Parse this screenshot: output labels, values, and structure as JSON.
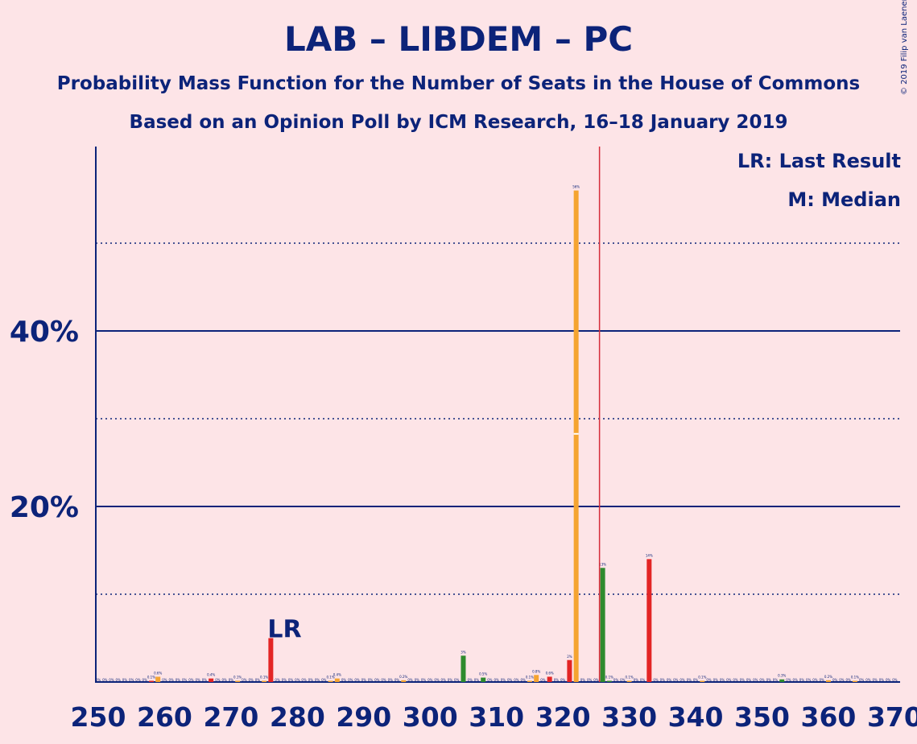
{
  "title": "LAB – LIBDEM – PC",
  "subtitle1": "Probability Mass Function for the Number of Seats in the House of Commons",
  "subtitle2": "Based on an Opinion Poll by ICM Research, 16–18 January 2019",
  "copyright": "© 2019 Filip van Laenen",
  "legend": {
    "lr": "LR: Last Result",
    "median": "M: Median"
  },
  "colors": {
    "background": "#fde4e7",
    "text": "#0c2379",
    "red": "#e32525",
    "orange": "#f5a430",
    "green": "#2e8b2e",
    "median_line": "#d62d3a"
  },
  "chart_data": {
    "type": "bar",
    "xlim": [
      250,
      370
    ],
    "ylim": [
      0,
      60
    ],
    "y_ticks": [
      20,
      40
    ],
    "y_tick_labels": [
      "20%",
      "40%"
    ],
    "y_minor_grid": [
      10,
      30,
      50
    ],
    "x_ticks": [
      250,
      260,
      270,
      280,
      290,
      300,
      310,
      320,
      330,
      340,
      350,
      360,
      370
    ],
    "x_tick_labels": [
      "250",
      "260",
      "270",
      "280",
      "290",
      "300",
      "310",
      "320",
      "330",
      "340",
      "350",
      "360",
      "370"
    ],
    "last_result": {
      "seat": 276,
      "label": "LR"
    },
    "median": {
      "seat": 322,
      "marker": "M"
    },
    "majority_line": 326,
    "bars": [
      {
        "seat": 258,
        "value": 0.1,
        "color": "red",
        "label": "0.1%"
      },
      {
        "seat": 259,
        "value": 0.6,
        "color": "orange",
        "label": "0.6%"
      },
      {
        "seat": 267,
        "value": 0.4,
        "color": "red",
        "label": "0.4%"
      },
      {
        "seat": 271,
        "value": 0.1,
        "color": "orange",
        "label": "0.1%"
      },
      {
        "seat": 275,
        "value": 0.1,
        "color": "orange",
        "label": "0.1%"
      },
      {
        "seat": 276,
        "value": 5,
        "color": "red",
        "label": ""
      },
      {
        "seat": 285,
        "value": 0.1,
        "color": "orange",
        "label": "0.1%"
      },
      {
        "seat": 286,
        "value": 0.4,
        "color": "orange",
        "label": "0.4%"
      },
      {
        "seat": 296,
        "value": 0.2,
        "color": "orange",
        "label": "0.2%"
      },
      {
        "seat": 305,
        "value": 3,
        "color": "green",
        "label": "3%"
      },
      {
        "seat": 308,
        "value": 0.5,
        "color": "green",
        "label": "0.5%"
      },
      {
        "seat": 315,
        "value": 0.1,
        "color": "orange",
        "label": "0.1%"
      },
      {
        "seat": 316,
        "value": 0.8,
        "color": "orange",
        "label": "0.8%"
      },
      {
        "seat": 318,
        "value": 0.6,
        "color": "red",
        "label": "0.6%"
      },
      {
        "seat": 321,
        "value": 2.5,
        "color": "red",
        "label": "2%"
      },
      {
        "seat": 322,
        "value": 56,
        "color": "orange",
        "label": "56%"
      },
      {
        "seat": 326,
        "value": 13,
        "color": "green",
        "label": "13%"
      },
      {
        "seat": 327,
        "value": 0.1,
        "color": "green",
        "label": "0.1%"
      },
      {
        "seat": 330,
        "value": 0.1,
        "color": "orange",
        "label": "0.1%"
      },
      {
        "seat": 333,
        "value": 14,
        "color": "red",
        "label": "14%"
      },
      {
        "seat": 341,
        "value": 0.1,
        "color": "orange",
        "label": "0.1%"
      },
      {
        "seat": 353,
        "value": 0.3,
        "color": "green",
        "label": "0.3%"
      },
      {
        "seat": 360,
        "value": 0.2,
        "color": "orange",
        "label": "0.2%"
      },
      {
        "seat": 364,
        "value": 0.1,
        "color": "orange",
        "label": "0.1%"
      }
    ]
  }
}
